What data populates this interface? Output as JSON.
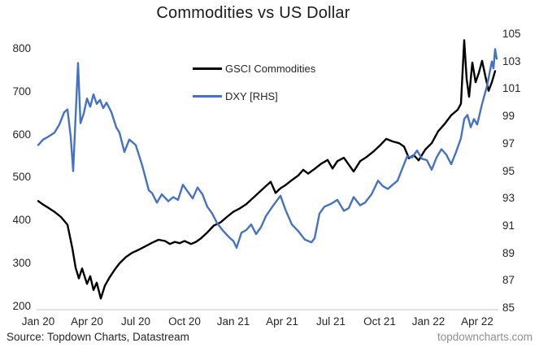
{
  "title": "Commodities vs US Dollar",
  "footer": {
    "source": "Source: Topdown Charts, Datastream",
    "watermark": "topdowncharts.com"
  },
  "colors": {
    "gsci_line": "#000000",
    "dxy_line": "#4472C4",
    "axis_line": "#d9d9d9",
    "text": "#262626",
    "watermark_text": "#8f8f8f"
  },
  "chart_data": {
    "type": "line",
    "title": "Commodities vs US Dollar",
    "x_unit": "months since Jan 2020",
    "x_tick_labels": [
      "Jan 20",
      "Apr 20",
      "Jul 20",
      "Oct 20",
      "Jan 21",
      "Apr 21",
      "Jul 21",
      "Oct 21",
      "Jan 22",
      "Apr 22"
    ],
    "x_tick_months": [
      0,
      3,
      6,
      9,
      12,
      15,
      18,
      21,
      24,
      27
    ],
    "left_axis": {
      "label": "GSCI Commodities",
      "min": 200,
      "max": 800,
      "ticks": [
        800,
        700,
        600,
        500,
        400,
        300,
        200
      ]
    },
    "right_axis": {
      "label": "DXY",
      "min": 85,
      "max": 105,
      "ticks": [
        105,
        103,
        101,
        99,
        97,
        95,
        93,
        91,
        89,
        87,
        85
      ]
    },
    "grid": "none",
    "legend_position": "inside-top-center",
    "series": [
      {
        "name": "GSCI Commodities",
        "slug": "gsci-commodities",
        "axis": "left",
        "color": "#000000",
        "x": [
          0,
          0.3,
          0.6,
          1.0,
          1.4,
          1.8,
          2.1,
          2.3,
          2.5,
          2.7,
          3.0,
          3.2,
          3.4,
          3.6,
          3.85,
          4.1,
          4.4,
          4.7,
          5.0,
          5.4,
          5.8,
          6.2,
          6.6,
          7.0,
          7.4,
          7.8,
          8.1,
          8.4,
          8.7,
          9.0,
          9.4,
          9.7,
          10.0,
          10.4,
          10.8,
          11.2,
          11.6,
          12.0,
          12.4,
          12.8,
          13.2,
          13.6,
          14.0,
          14.3,
          14.6,
          14.9,
          15.2,
          15.6,
          16.0,
          16.3,
          16.6,
          17.0,
          17.4,
          17.8,
          18.1,
          18.4,
          18.8,
          19.1,
          19.4,
          19.8,
          20.2,
          20.6,
          21.0,
          21.4,
          21.8,
          22.2,
          22.5,
          22.8,
          23.1,
          23.4,
          23.8,
          24.2,
          24.6,
          25.0,
          25.4,
          25.8,
          26.0,
          26.2,
          26.35,
          26.5,
          26.7,
          26.9,
          27.1,
          27.3,
          27.5,
          27.7,
          27.9,
          28.1
        ],
        "values": [
          445,
          437,
          430,
          420,
          408,
          390,
          335,
          290,
          265,
          288,
          252,
          270,
          238,
          255,
          218,
          248,
          268,
          285,
          300,
          315,
          325,
          332,
          340,
          348,
          355,
          352,
          345,
          350,
          347,
          352,
          345,
          350,
          358,
          372,
          388,
          395,
          408,
          420,
          428,
          438,
          452,
          466,
          480,
          490,
          464,
          475,
          482,
          494,
          505,
          518,
          509,
          520,
          532,
          541,
          521,
          538,
          546,
          530,
          514,
          538,
          548,
          560,
          574,
          590,
          584,
          580,
          572,
          545,
          552,
          540,
          565,
          580,
          608,
          625,
          645,
          658,
          672,
          820,
          730,
          688,
          768,
          722,
          744,
          772,
          736,
          702,
          722,
          748
        ]
      },
      {
        "name": "DXY [RHS]",
        "slug": "dxy",
        "axis": "right",
        "color": "#4472C4",
        "x": [
          0,
          0.3,
          0.6,
          1.0,
          1.3,
          1.6,
          1.8,
          2.0,
          2.15,
          2.3,
          2.45,
          2.6,
          2.8,
          3.0,
          3.2,
          3.4,
          3.6,
          3.8,
          4.0,
          4.2,
          4.5,
          4.8,
          5.0,
          5.3,
          5.6,
          6.0,
          6.4,
          6.8,
          7.0,
          7.3,
          7.6,
          8.0,
          8.3,
          8.6,
          8.9,
          9.2,
          9.5,
          9.8,
          10.1,
          10.4,
          10.7,
          11.0,
          11.4,
          11.8,
          12.0,
          12.2,
          12.5,
          12.8,
          13.1,
          13.4,
          13.7,
          14.0,
          14.4,
          14.9,
          15.2,
          15.6,
          16.0,
          16.4,
          16.8,
          17.0,
          17.3,
          17.6,
          18.0,
          18.4,
          18.8,
          19.1,
          19.4,
          19.8,
          20.1,
          20.5,
          20.9,
          21.2,
          21.5,
          21.8,
          22.1,
          22.4,
          22.7,
          23.0,
          23.3,
          23.6,
          23.9,
          24.2,
          24.5,
          24.8,
          25.1,
          25.4,
          25.7,
          26.0,
          26.2,
          26.4,
          26.6,
          26.8,
          27.0,
          27.3,
          27.6,
          27.9,
          28.0,
          28.1,
          28.2
        ],
        "values": [
          96.9,
          97.3,
          97.5,
          97.8,
          98.4,
          99.3,
          99.5,
          97.5,
          95.0,
          99.0,
          102.9,
          98.5,
          99.2,
          100.3,
          99.7,
          100.6,
          99.9,
          100.2,
          99.6,
          100.0,
          99.3,
          98.2,
          97.8,
          96.4,
          97.3,
          96.9,
          95.4,
          93.6,
          93.4,
          92.7,
          93.3,
          92.8,
          93.1,
          92.9,
          94.0,
          93.5,
          93.0,
          93.8,
          93.3,
          92.4,
          91.9,
          91.2,
          90.6,
          90.1,
          89.9,
          89.4,
          90.5,
          90.7,
          91.1,
          90.4,
          90.9,
          91.7,
          92.4,
          93.2,
          92.2,
          91.1,
          90.6,
          90.0,
          89.8,
          90.1,
          91.9,
          92.4,
          92.6,
          92.9,
          92.1,
          92.3,
          93.1,
          92.5,
          92.7,
          93.3,
          94.3,
          93.9,
          93.7,
          94.0,
          94.3,
          95.2,
          96.1,
          96.0,
          96.5,
          95.9,
          95.8,
          95.1,
          96.0,
          96.6,
          96.2,
          95.5,
          96.4,
          97.4,
          98.8,
          99.1,
          98.2,
          98.8,
          98.4,
          99.9,
          101.2,
          103.0,
          102.5,
          103.9,
          103.2
        ]
      }
    ]
  }
}
